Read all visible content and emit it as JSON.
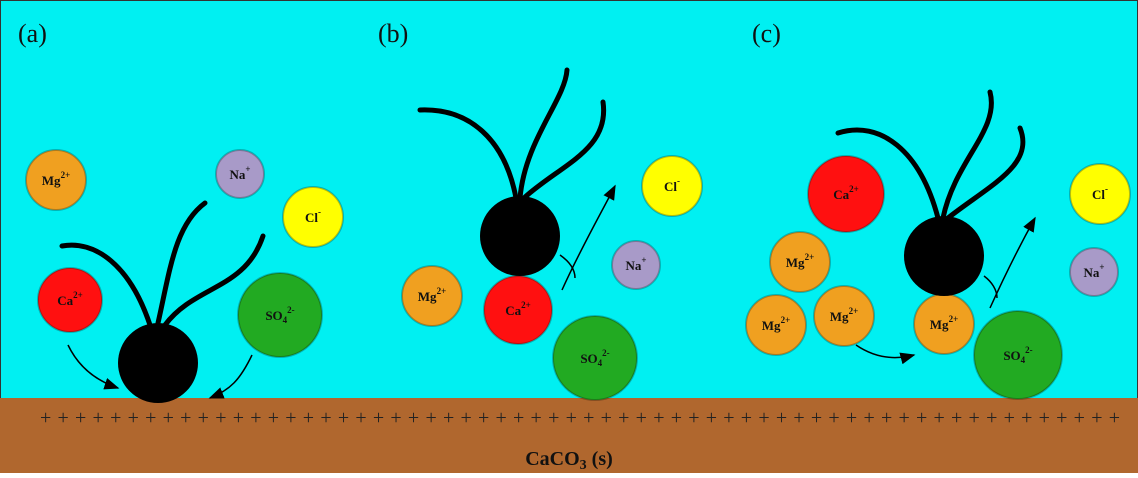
{
  "panels": [
    {
      "label": "(a)",
      "ions": [
        {
          "text": "Mg",
          "sup": "2+"
        },
        {
          "text": "Na",
          "sup": "+"
        },
        {
          "text": "Cl",
          "sup": "-"
        },
        {
          "text": "Ca",
          "sup": "2+"
        },
        {
          "text": "SO",
          "sub": "4",
          "sup": "2-"
        }
      ]
    },
    {
      "label": "(b)",
      "ions": [
        {
          "text": "Mg",
          "sup": "2+"
        },
        {
          "text": "Ca",
          "sup": "2+"
        },
        {
          "text": "Cl",
          "sup": "-"
        },
        {
          "text": "Na",
          "sup": "+"
        },
        {
          "text": "SO",
          "sub": "4",
          "sup": "2-"
        }
      ]
    },
    {
      "label": "(c)",
      "ions": [
        {
          "text": "Ca",
          "sup": "2+"
        },
        {
          "text": "Cl",
          "sup": "-"
        },
        {
          "text": "Mg",
          "sup": "2+"
        },
        {
          "text": "Mg",
          "sup": "2+"
        },
        {
          "text": "Mg",
          "sup": "2+"
        },
        {
          "text": "Mg",
          "sup": "2+"
        },
        {
          "text": "Na",
          "sup": "+"
        },
        {
          "text": "SO",
          "sub": "4",
          "sup": "2-"
        }
      ]
    }
  ],
  "surface": {
    "charges": "+ + + + + + + + + + + + + + + + + + + + + + + + + + + + + + + + + + + + + + + + + + + + + + + + + + + + + + + + + + + + + +",
    "label": {
      "text": "CaCO",
      "sub": "3",
      "suffix": " (s)"
    }
  }
}
